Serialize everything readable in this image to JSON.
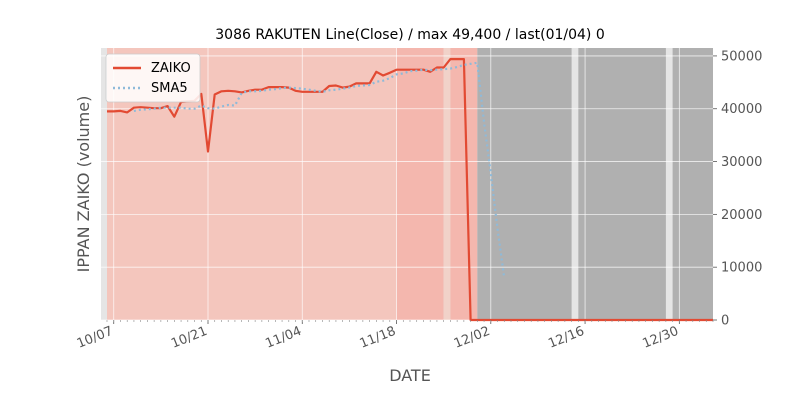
{
  "chart_data": {
    "type": "line",
    "title": "3086 RAKUTEN Line(Close) / max 49,400 / last(01/04) 0",
    "xlabel": "DATE",
    "ylabel": "IPPAN ZAIKO (volume)",
    "x_ticks": [
      "10/07",
      "10/21",
      "11/04",
      "11/18",
      "12/02",
      "12/16",
      "12/30"
    ],
    "y_ticks": [
      "0",
      "10000",
      "20000",
      "30000",
      "40000",
      "50000"
    ],
    "ylim": [
      0,
      51500
    ],
    "grid": true,
    "legend_position": "top-left",
    "colors": {
      "ZAIKO": "#e24a33",
      "SMA5": "#8ebad9",
      "background": "#e5e5e5",
      "grid": "#ffffff"
    },
    "series": [
      {
        "name": "ZAIKO",
        "x": [
          "10/06",
          "10/07",
          "10/08",
          "10/09",
          "10/10",
          "10/11",
          "10/12",
          "10/13",
          "10/14",
          "10/15",
          "10/16",
          "10/17",
          "10/18",
          "10/19",
          "10/20",
          "10/21",
          "10/22",
          "10/23",
          "10/24",
          "10/25",
          "10/26",
          "10/27",
          "10/28",
          "10/29",
          "10/30",
          "10/31",
          "11/01",
          "11/02",
          "11/03",
          "11/04",
          "11/05",
          "11/06",
          "11/07",
          "11/08",
          "11/09",
          "11/10",
          "11/11",
          "11/12",
          "11/13",
          "11/14",
          "11/15",
          "11/16",
          "11/17",
          "11/18",
          "11/19",
          "11/20",
          "11/21",
          "11/22",
          "11/23",
          "11/24",
          "11/25",
          "11/26",
          "11/27",
          "11/28",
          "11/29",
          "11/30",
          "12/01",
          "12/02",
          "12/03",
          "12/04",
          "12/05",
          "12/06",
          "12/07",
          "12/08",
          "12/09",
          "12/10",
          "12/11",
          "12/12",
          "12/13",
          "12/14",
          "12/15",
          "12/16",
          "12/17",
          "12/18",
          "12/19",
          "12/20",
          "12/21",
          "12/22",
          "12/23",
          "12/24",
          "12/25",
          "12/26",
          "12/27",
          "12/28",
          "12/29",
          "12/30",
          "12/31",
          "01/01",
          "01/02",
          "01/03",
          "01/04"
        ],
        "values": [
          39500,
          39500,
          39600,
          39300,
          40200,
          40300,
          40200,
          40100,
          40100,
          40500,
          38500,
          41300,
          41400,
          41500,
          42800,
          31900,
          42700,
          43300,
          43400,
          43300,
          43100,
          43400,
          43600,
          43600,
          44100,
          44100,
          44100,
          44000,
          43400,
          43200,
          43200,
          43200,
          43200,
          44300,
          44400,
          44000,
          44200,
          44800,
          44800,
          44800,
          47000,
          46300,
          46800,
          47400,
          47400,
          47400,
          47400,
          47400,
          47000,
          47800,
          47800,
          49400,
          49400,
          49400,
          0,
          0,
          0,
          0,
          0,
          0,
          0,
          0,
          0,
          0,
          0,
          0,
          0,
          0,
          0,
          0,
          0,
          0,
          0,
          0,
          0,
          0,
          0,
          0,
          0,
          0,
          0,
          0,
          0,
          0,
          0,
          0,
          0,
          0,
          0,
          0,
          0
        ]
      },
      {
        "name": "SMA5",
        "x": [
          "10/10",
          "10/11",
          "10/12",
          "10/13",
          "10/14",
          "10/15",
          "10/16",
          "10/17",
          "10/18",
          "10/19",
          "10/20",
          "10/21",
          "10/22",
          "10/23",
          "10/24",
          "10/25",
          "10/26",
          "10/27",
          "10/28",
          "10/29",
          "10/30",
          "10/31",
          "11/01",
          "11/02",
          "11/03",
          "11/04",
          "11/05",
          "11/06",
          "11/07",
          "11/08",
          "11/09",
          "11/10",
          "11/11",
          "11/12",
          "11/13",
          "11/14",
          "11/15",
          "11/16",
          "11/17",
          "11/18",
          "11/19",
          "11/20",
          "11/21",
          "11/22",
          "11/23",
          "11/24",
          "11/25",
          "11/26",
          "11/27",
          "11/28",
          "11/29",
          "11/30",
          "12/01",
          "12/02",
          "12/03",
          "12/04"
        ],
        "values": [
          39600,
          39800,
          39900,
          40000,
          40200,
          40200,
          40200,
          40200,
          40000,
          40000,
          40600,
          40100,
          40000,
          40400,
          40700,
          40600,
          43000,
          43300,
          43300,
          43400,
          43600,
          43700,
          43900,
          44000,
          43900,
          43800,
          43600,
          43400,
          43200,
          43500,
          43600,
          43800,
          44000,
          44300,
          44400,
          44500,
          45100,
          45300,
          45800,
          46500,
          46700,
          47100,
          47200,
          47400,
          47300,
          47400,
          47500,
          47600,
          47900,
          48300,
          48500,
          48700,
          37300,
          27800,
          17300,
          7900
        ]
      }
    ],
    "shaded_regions": [
      {
        "from": "10/06",
        "to": "11/18",
        "color": "#f4c6bd"
      },
      {
        "from": "11/18",
        "to": "11/25",
        "color": "#f4b7ae"
      },
      {
        "from": "11/25",
        "to": "11/26",
        "color": "#f1d2c9"
      },
      {
        "from": "11/26",
        "to": "11/30",
        "color": "#f4b7ae"
      },
      {
        "from": "11/30",
        "to": "12/14",
        "color": "#b0b0b0"
      },
      {
        "from": "12/15",
        "to": "12/28",
        "color": "#b0b0b0"
      },
      {
        "from": "12/29",
        "to": "01/04",
        "color": "#b0b0b0"
      }
    ]
  }
}
